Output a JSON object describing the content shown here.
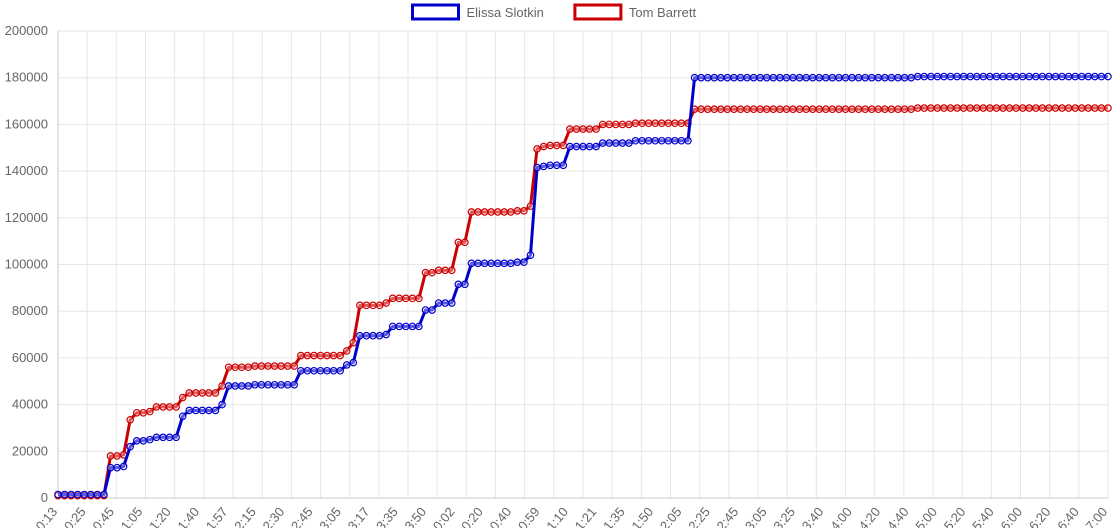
{
  "chart_data": {
    "type": "line",
    "title": "",
    "xlabel": "",
    "ylabel": "",
    "ylim": [
      0,
      200000
    ],
    "yticks": [
      0,
      20000,
      40000,
      60000,
      80000,
      100000,
      120000,
      140000,
      160000,
      180000,
      200000
    ],
    "grid": true,
    "legend_position": "top",
    "xtick_labels": [
      "0:13",
      "0:25",
      "0:45",
      "1:05",
      "1:20",
      "1:40",
      "1:57",
      "2:15",
      "2:30",
      "2:45",
      "3:05",
      "3:17",
      "3:35",
      "3:50",
      "0:02",
      "0:20",
      "0:40",
      "0:59",
      "1:10",
      "1:21",
      "1:35",
      "1:50",
      "2:05",
      "2:25",
      "2:45",
      "3:05",
      "3:25",
      "3:40",
      "4:00",
      "4:20",
      "4:40",
      "5:00",
      "5:20",
      "5:40",
      "6:00",
      "6:20",
      "6:40",
      "7:00"
    ],
    "series": [
      {
        "name": "Elissa Slotkin",
        "color": "#0000cc",
        "values": [
          1500,
          1500,
          1500,
          1500,
          1500,
          1500,
          1500,
          1500,
          13000,
          13000,
          13500,
          22000,
          24500,
          24500,
          25000,
          26000,
          26000,
          26000,
          26000,
          35000,
          37500,
          37500,
          37500,
          37500,
          37500,
          40000,
          48000,
          48000,
          48000,
          48000,
          48500,
          48500,
          48500,
          48500,
          48500,
          48500,
          48500,
          54500,
          54500,
          54500,
          54500,
          54500,
          54500,
          54500,
          57000,
          58000,
          69500,
          69500,
          69500,
          69500,
          70000,
          73500,
          73500,
          73500,
          73500,
          73500,
          80500,
          80500,
          83500,
          83500,
          83500,
          91500,
          91500,
          100500,
          100500,
          100500,
          100500,
          100500,
          100500,
          100500,
          101000,
          101000,
          104000,
          141500,
          142000,
          142500,
          142500,
          142500,
          150500,
          150500,
          150500,
          150500,
          150500,
          152000,
          152000,
          152000,
          152000,
          152000,
          153000,
          153000,
          153000,
          153000,
          153000,
          153000,
          153000,
          153000,
          153000,
          180000,
          180000,
          180000,
          180000,
          180000,
          180000,
          180000,
          180000,
          180000,
          180000,
          180000,
          180000,
          180000,
          180000,
          180000,
          180000,
          180000,
          180000,
          180000,
          180000,
          180000,
          180000,
          180000,
          180000,
          180000,
          180000,
          180000,
          180000,
          180000,
          180000,
          180000,
          180000,
          180000,
          180000,
          180500,
          180500,
          180500,
          180500,
          180500,
          180500,
          180500,
          180500,
          180500,
          180500,
          180500,
          180500,
          180500,
          180500,
          180500,
          180500,
          180500,
          180500,
          180500,
          180500,
          180500,
          180500,
          180500,
          180500,
          180500,
          180500,
          180500,
          180500,
          180500,
          180500
        ]
      },
      {
        "name": "Tom Barrett",
        "color": "#cc0000",
        "values": [
          1000,
          1000,
          1000,
          1000,
          1000,
          1000,
          1000,
          1000,
          18000,
          18000,
          18500,
          33500,
          36500,
          36500,
          37000,
          39000,
          39000,
          39000,
          39000,
          43000,
          45000,
          45000,
          45000,
          45000,
          45000,
          48000,
          56000,
          56000,
          56000,
          56000,
          56500,
          56500,
          56500,
          56500,
          56500,
          56500,
          56500,
          61000,
          61000,
          61000,
          61000,
          61000,
          61000,
          61000,
          63000,
          66500,
          82500,
          82500,
          82500,
          82500,
          83500,
          85500,
          85500,
          85500,
          85500,
          85500,
          96500,
          96500,
          97500,
          97500,
          97500,
          109500,
          109500,
          122500,
          122500,
          122500,
          122500,
          122500,
          122500,
          122500,
          123000,
          123000,
          125000,
          149500,
          150500,
          151000,
          151000,
          151000,
          158000,
          158000,
          158000,
          158000,
          158000,
          160000,
          160000,
          160000,
          160000,
          160000,
          160500,
          160500,
          160500,
          160500,
          160500,
          160500,
          160500,
          160500,
          160500,
          166500,
          166500,
          166500,
          166500,
          166500,
          166500,
          166500,
          166500,
          166500,
          166500,
          166500,
          166500,
          166500,
          166500,
          166500,
          166500,
          166500,
          166500,
          166500,
          166500,
          166500,
          166500,
          166500,
          166500,
          166500,
          166500,
          166500,
          166500,
          166500,
          166500,
          166500,
          166500,
          166500,
          166500,
          167000,
          167000,
          167000,
          167000,
          167000,
          167000,
          167000,
          167000,
          167000,
          167000,
          167000,
          167000,
          167000,
          167000,
          167000,
          167000,
          167000,
          167000,
          167000,
          167000,
          167000,
          167000,
          167000,
          167000,
          167000,
          167000,
          167000,
          167000,
          167000,
          167000
        ]
      }
    ]
  }
}
